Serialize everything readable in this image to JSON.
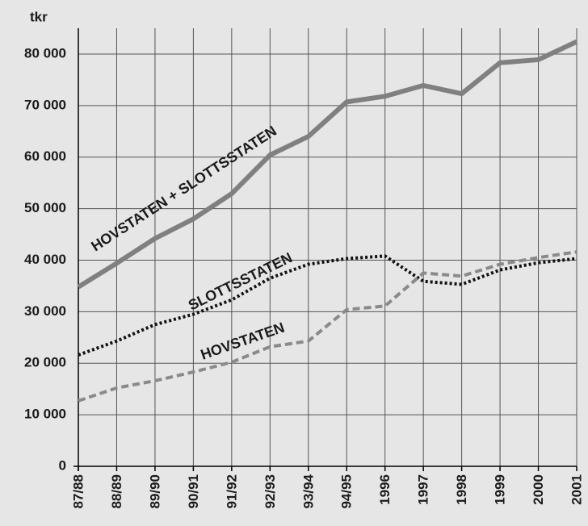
{
  "chart_data": {
    "type": "line",
    "y_axis_label": "tkr",
    "categories": [
      "87/88",
      "88/89",
      "89/90",
      "90/91",
      "91/92",
      "92/93",
      "93/94",
      "94/95",
      "1996",
      "1997",
      "1998",
      "1999",
      "2000",
      "2001"
    ],
    "series": [
      {
        "name": "HOVSTATEN + SLOTTSSTATEN",
        "color": "#808080",
        "style": "solid",
        "values": [
          34800,
          39400,
          44200,
          48000,
          52900,
          60400,
          64000,
          70700,
          71800,
          73900,
          72300,
          78300,
          78900,
          82400
        ]
      },
      {
        "name": "SLOTTSSTATEN",
        "color": "#111111",
        "style": "dotted",
        "values": [
          21600,
          24300,
          27500,
          29500,
          32300,
          36500,
          39200,
          40300,
          40800,
          35900,
          35300,
          38100,
          39500,
          40300
        ]
      },
      {
        "name": "HOVSTATEN",
        "color": "#8a8a8a",
        "style": "dashed",
        "values": [
          12700,
          15200,
          16600,
          18300,
          20200,
          23200,
          24300,
          30400,
          31100,
          37500,
          36900,
          39200,
          40500,
          41600
        ]
      }
    ],
    "ylim": [
      0,
      85000
    ],
    "yticks": [
      0,
      {
        "value": 10000,
        "label": "10 000"
      },
      {
        "value": 20000,
        "label": "20 000"
      },
      {
        "value": 30000,
        "label": "30 000"
      },
      {
        "value": 40000,
        "label": "40 000"
      },
      {
        "value": 50000,
        "label": "50 000"
      },
      {
        "value": 60000,
        "label": "60 000"
      },
      {
        "value": 70000,
        "label": "70 000"
      },
      {
        "value": 80000,
        "label": "80 000"
      }
    ],
    "grid": true
  }
}
